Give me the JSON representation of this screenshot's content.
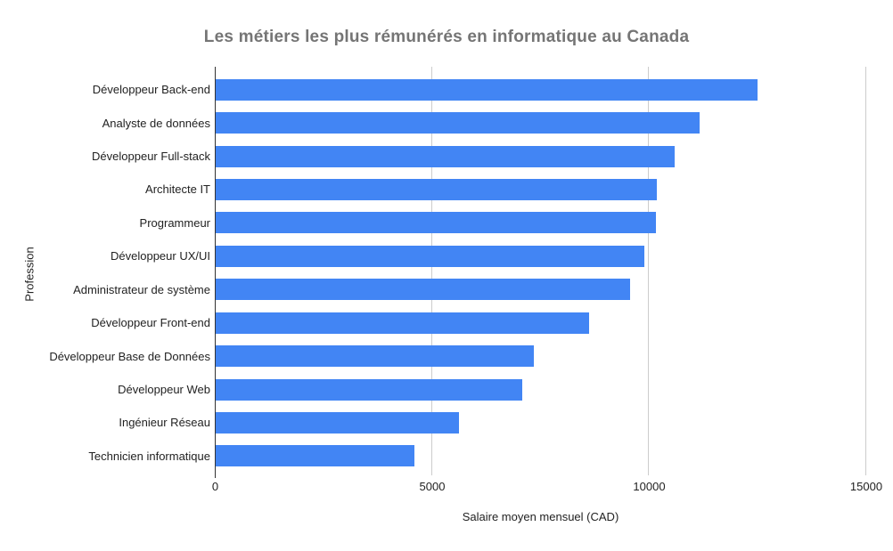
{
  "chart_data": {
    "type": "bar",
    "orientation": "horizontal",
    "title": "Les métiers les plus rémunérés en informatique au Canada",
    "xlabel": "Salaire moyen mensuel (CAD)",
    "ylabel": "Profession",
    "categories": [
      "Développeur Back-end",
      "Analyste de données",
      "Développeur Full-stack",
      "Architecte IT",
      "Programmeur",
      "Développeur UX/UI",
      "Administrateur de système",
      "Développeur Front-end",
      "Développeur Base de Données",
      "Développeur Web",
      "Ingénieur Réseau",
      "Technicien informatique"
    ],
    "values": [
      12500,
      11167,
      10583,
      10167,
      10142,
      9883,
      9550,
      8617,
      7333,
      7067,
      5617,
      4575
    ],
    "xlim": [
      0,
      15000
    ],
    "xticks": [
      0,
      5000,
      10000,
      15000
    ],
    "grid": true,
    "legend": "none",
    "bar_color": "#4285f4",
    "title_color": "#757575",
    "axis_text_color": "#222222",
    "gridline_color": "#cccccc",
    "axis_line_color": "#333333",
    "background_color": "#ffffff"
  }
}
